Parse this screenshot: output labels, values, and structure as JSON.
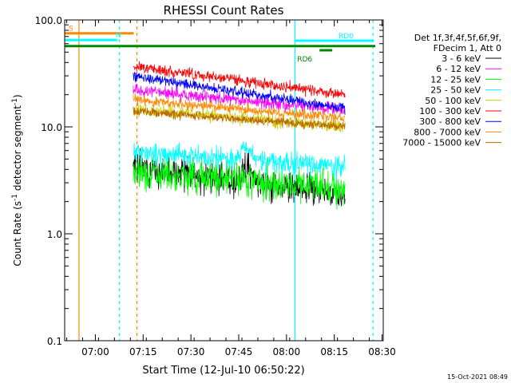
{
  "chart_data": {
    "type": "line",
    "title": "RHESSI Count Rates",
    "xlabel": "Start Time (12-Jul-10 06:50:22)",
    "ylabel_main": "Count Rate (s",
    "ylabel_sup1": "-1",
    "ylabel_mid": " detector segment",
    "ylabel_sup2": "-1",
    "ylabel_end": ")",
    "y_scale": "log",
    "ylim": [
      0.1,
      100
    ],
    "xlim_minutes": [
      0,
      100
    ],
    "x_ticks": [
      {
        "label": "07:00",
        "t": 9.63
      },
      {
        "label": "07:15",
        "t": 24.63
      },
      {
        "label": "07:30",
        "t": 39.63
      },
      {
        "label": "07:45",
        "t": 54.63
      },
      {
        "label": "08:00",
        "t": 69.63
      },
      {
        "label": "08:15",
        "t": 84.63
      },
      {
        "label": "08:30",
        "t": 99.63
      }
    ],
    "y_ticks": [
      {
        "label": "0.1",
        "v": 0.1
      },
      {
        "label": "1.0",
        "v": 1
      },
      {
        "label": "10.0",
        "v": 10
      },
      {
        "label": "100.0",
        "v": 100
      }
    ],
    "legend_header": [
      "Det 1f,3f,4f,5f,6f,9f,",
      "FDecim 1, Att 0"
    ],
    "legend_placement": "right",
    "data_window_minutes": [
      21.5,
      88
    ],
    "series": [
      {
        "name": "3 - 6 keV",
        "color": "#000000",
        "start": 4.2,
        "end": 2.3,
        "noise": 0.07,
        "seed": 3
      },
      {
        "name": "6 - 12 keV",
        "color": "#ff00ff",
        "start": 22,
        "end": 14.5,
        "noise": 0.03,
        "seed": 5
      },
      {
        "name": "12 - 25 keV",
        "color": "#00ff00",
        "start": 3.9,
        "end": 2.7,
        "noise": 0.08,
        "seed": 7
      },
      {
        "name": "25 - 50 keV",
        "color": "#00ffff",
        "start": 5.8,
        "end": 4.2,
        "noise": 0.05,
        "seed": 11
      },
      {
        "name": "50 - 100 keV",
        "color": "#cccc00",
        "start": 14.5,
        "end": 10,
        "noise": 0.03,
        "seed": 13
      },
      {
        "name": "100 - 300 keV",
        "color": "#ff0000",
        "start": 37,
        "end": 20,
        "noise": 0.025,
        "seed": 17
      },
      {
        "name": "300 - 800 keV",
        "color": "#0000ff",
        "start": 30,
        "end": 15,
        "noise": 0.025,
        "seed": 19
      },
      {
        "name": "800 - 7000 keV",
        "color": "#ff8800",
        "start": 18,
        "end": 12,
        "noise": 0.025,
        "seed": 23
      },
      {
        "name": "7000 - 15000 keV",
        "color": "#bb6600",
        "start": 14,
        "end": 10,
        "noise": 0.02,
        "seed": 29
      }
    ],
    "annotations": [
      {
        "label": "S",
        "color": "#ff8800",
        "t0": 0,
        "t1": 21.7,
        "v": 75
      },
      {
        "label": "N",
        "color": "#00ffff",
        "t0": 0,
        "t1": 16.5,
        "v": 65
      },
      {
        "label": "RD0",
        "color": "#00ffff",
        "t0": 72.3,
        "t1": 97,
        "v": 64
      },
      {
        "label": "RD6",
        "color": "#008800",
        "t0": 80,
        "t1": 84,
        "v": 52
      },
      {
        "label": "",
        "color": "#008800",
        "t0": 0,
        "t1": 97.5,
        "v": 57
      }
    ],
    "vlines": [
      {
        "t": 4.5,
        "color": "#ff8800",
        "style": "solid"
      },
      {
        "t": 17.2,
        "color": "#00ffff",
        "style": "dashed"
      },
      {
        "t": 22.7,
        "color": "#ff8800",
        "style": "dashed"
      },
      {
        "t": 72.3,
        "color": "#00ffff",
        "style": "solid"
      },
      {
        "t": 96.8,
        "color": "#00ffff",
        "style": "dashed"
      }
    ]
  },
  "footer": {
    "timestamp": "15-Oct-2021 08:49"
  }
}
